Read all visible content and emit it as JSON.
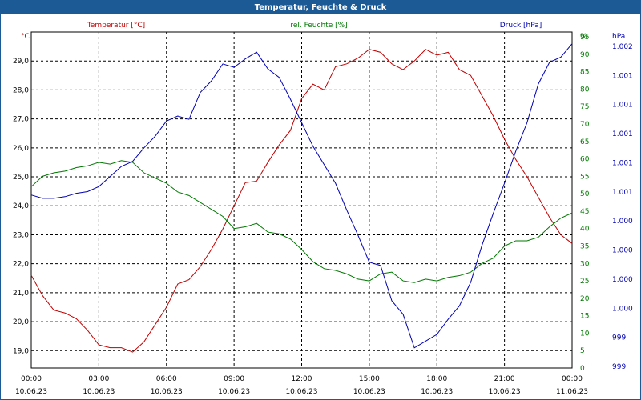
{
  "window": {
    "title": "Temperatur, Feuchte & Druck"
  },
  "chart_data": {
    "type": "line",
    "title": "Temperatur, Feuchte & Druck",
    "x_hours": [
      0,
      3,
      6,
      9,
      12,
      15,
      18,
      21,
      24
    ],
    "x_time_labels": [
      "00:00",
      "03:00",
      "06:00",
      "09:00",
      "12:00",
      "15:00",
      "18:00",
      "21:00",
      "00:00"
    ],
    "x_date_labels": [
      "10.06.23",
      "10.06.23",
      "10.06.23",
      "10.06.23",
      "10.06.23",
      "10.06.23",
      "10.06.23",
      "10.06.23",
      "11.06.23"
    ],
    "grid": true,
    "axes": {
      "temperature": {
        "label": "Temperatur [°C]",
        "unit": "°C",
        "ylim": [
          18.4,
          30.0
        ],
        "ticks": [
          19.0,
          20.0,
          21.0,
          22.0,
          23.0,
          24.0,
          25.0,
          26.0,
          27.0,
          28.0,
          29.0
        ],
        "tick_labels": [
          "19,0",
          "20,0",
          "21,0",
          "22,0",
          "23,0",
          "24,0",
          "25,0",
          "26,0",
          "27,0",
          "28,0",
          "29,0"
        ]
      },
      "humidity": {
        "label": "rel. Feuchte [%]",
        "unit": "%",
        "ylim": [
          0,
          96.4
        ],
        "ticks": [
          0,
          5,
          10,
          15,
          20,
          25,
          30,
          35,
          40,
          45,
          50,
          55,
          60,
          65,
          70,
          75,
          80,
          85,
          90,
          95
        ],
        "tick_labels": [
          "0",
          "5",
          "10",
          "15",
          "20",
          "25",
          "30",
          "35",
          "40",
          "45",
          "50",
          "55",
          "60",
          "65",
          "70",
          "75",
          "80",
          "85",
          "90",
          "95"
        ],
        "top_unit_label": "%"
      },
      "pressure": {
        "label": "Druck [hPa]",
        "unit": "hPa",
        "tick_labels": [
          "999",
          "999",
          "1.000",
          "1.000",
          "1.000",
          "1.000",
          "1.001",
          "1.001",
          "1.001",
          "1.001",
          "1.001",
          "1.002"
        ]
      }
    },
    "series": [
      {
        "name": "Temperatur [°C]",
        "color": "#c00000",
        "axis": "temperature",
        "x": [
          0,
          0.5,
          1,
          1.5,
          2,
          2.5,
          3,
          3.5,
          4,
          4.5,
          5,
          5.5,
          6,
          6.5,
          7,
          7.5,
          8,
          8.5,
          9,
          9.5,
          10,
          10.5,
          11,
          11.5,
          12,
          12.5,
          13,
          13.5,
          14,
          14.5,
          15,
          15.5,
          16,
          16.5,
          17,
          17.5,
          18,
          18.5,
          19,
          19.5,
          20,
          20.5,
          21,
          21.5,
          22,
          22.5,
          23,
          23.5,
          24
        ],
        "values": [
          21.6,
          20.9,
          20.4,
          20.3,
          20.1,
          19.7,
          19.2,
          19.1,
          19.1,
          18.95,
          19.3,
          19.9,
          20.5,
          21.3,
          21.45,
          21.9,
          22.5,
          23.2,
          24.0,
          24.8,
          24.85,
          25.5,
          26.1,
          26.6,
          27.7,
          28.2,
          28.0,
          28.8,
          28.9,
          29.1,
          29.4,
          29.3,
          28.9,
          28.7,
          29.0,
          29.4,
          29.2,
          29.3,
          28.7,
          28.5,
          27.8,
          27.1,
          26.3,
          25.6,
          25.0,
          24.3,
          23.6,
          23.0,
          22.7
        ]
      },
      {
        "name": "rel. Feuchte [%]",
        "color": "#007800",
        "axis": "humidity",
        "x": [
          0,
          0.5,
          1,
          1.5,
          2,
          2.5,
          3,
          3.5,
          4,
          4.5,
          5,
          5.5,
          6,
          6.5,
          7,
          7.5,
          8,
          8.5,
          9,
          9.5,
          10,
          10.5,
          11,
          11.5,
          12,
          12.5,
          13,
          13.5,
          14,
          14.5,
          15,
          15.5,
          16,
          16.5,
          17,
          17.5,
          18,
          18.5,
          19,
          19.5,
          20,
          20.5,
          21,
          21.5,
          22,
          22.5,
          23,
          23.5,
          24
        ],
        "values": [
          52,
          55,
          56,
          56.5,
          57.5,
          58,
          59,
          58.5,
          59.5,
          59,
          56,
          54.5,
          53,
          50.5,
          49.5,
          47.5,
          45.5,
          43.5,
          40,
          40.5,
          41.5,
          39,
          38.5,
          37,
          34,
          30.5,
          28.5,
          28,
          27,
          25.5,
          25,
          27,
          27.5,
          25,
          24.5,
          25.5,
          25,
          26,
          26.5,
          27.5,
          30,
          31.5,
          35,
          36.5,
          36.5,
          37.5,
          40.5,
          43,
          44.5
        ]
      },
      {
        "name": "Druck [hPa]",
        "color": "#0000b4",
        "axis": "pressure",
        "x": [
          0,
          0.5,
          1,
          1.5,
          2,
          2.5,
          3,
          3.5,
          4,
          4.5,
          5,
          5.5,
          6,
          6.5,
          7,
          7.5,
          8,
          8.5,
          9,
          9.5,
          10,
          10.5,
          11,
          11.5,
          12,
          12.5,
          13,
          13.5,
          14,
          14.5,
          15,
          15.5,
          16,
          16.5,
          17,
          17.5,
          18,
          18.5,
          19,
          19.5,
          20,
          20.5,
          21,
          21.5,
          22,
          22.5,
          23,
          23.5,
          24
        ],
        "values_axis_pct": [
          51.5,
          50.5,
          50.5,
          51,
          52,
          52.5,
          54,
          57,
          60,
          61.5,
          65.5,
          69,
          73.5,
          75,
          74,
          82,
          85.5,
          90.5,
          89.5,
          92,
          94,
          89,
          86.5,
          80,
          73,
          66,
          60.5,
          55,
          47,
          39.5,
          31.5,
          30.5,
          20,
          16,
          6,
          8,
          10,
          14.5,
          18.5,
          25.5,
          36.5,
          46,
          55,
          64.5,
          73,
          84.5,
          91,
          92.5,
          96.5
        ]
      }
    ]
  }
}
